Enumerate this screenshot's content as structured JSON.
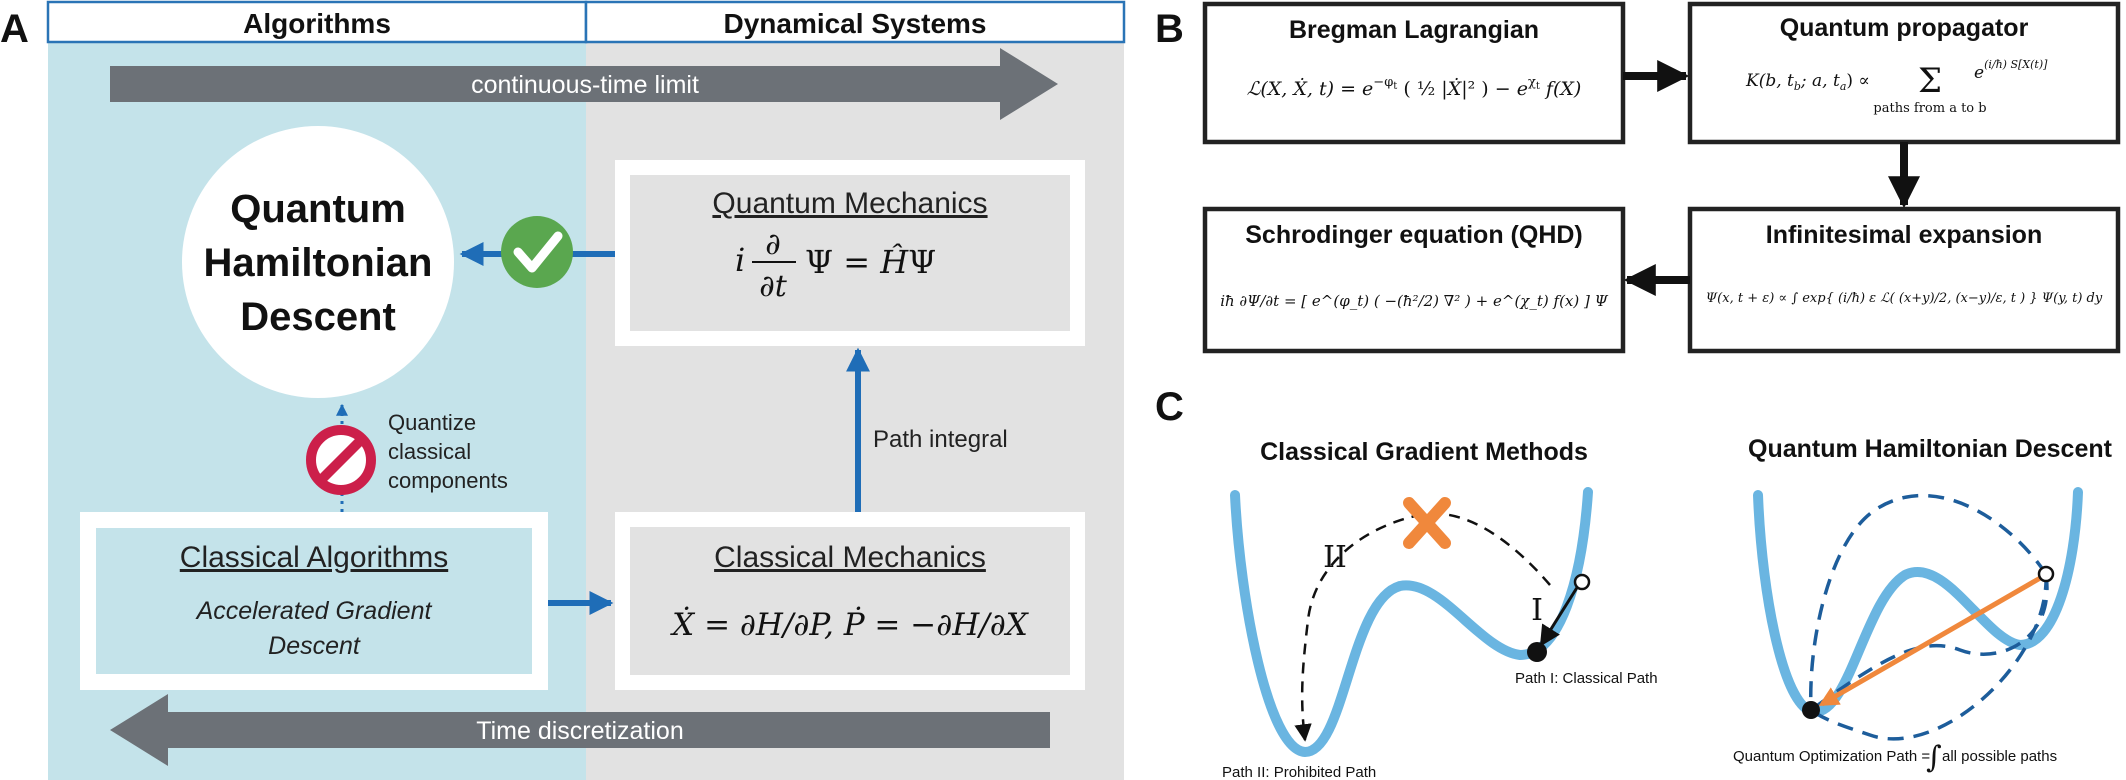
{
  "panel_labels": {
    "a": "A",
    "b": "B",
    "c": "C"
  },
  "colors": {
    "algorithms_bg": "#c4e3ea",
    "dynamics_bg": "#e2e2e2",
    "header_border": "#2a74b6",
    "arrow_gray": "#6c7177",
    "blue_arrow": "#1f6db7",
    "check_green": "#5aa74f",
    "prohibit_red": "#cc1f4a",
    "curve_blue": "#6ab5e1",
    "cross_orange": "#f0883c",
    "path_blue": "#1d5d9b"
  },
  "panel_a": {
    "header_left": "Algorithms",
    "header_right": "Dynamical Systems",
    "arrow_top": "continuous-time limit",
    "arrow_bottom": "Time discretization",
    "qhd_lines": [
      "Quantum",
      "Hamiltonian",
      "Descent"
    ],
    "quantum_mechanics_title": "Quantum Mechanics",
    "schrodinger_eq": "i ∂Ψ/∂t = ĤΨ",
    "path_integral": "Path integral",
    "quantize_lines": [
      "Quantize",
      "classical",
      "components"
    ],
    "classical_algorithms_title": "Classical Algorithms",
    "classical_algorithms_sub": [
      "Accelerated Gradient",
      "Descent"
    ],
    "classical_mechanics_title": "Classical Mechanics",
    "hamilton_eq": "Ẋ = ∂H/∂P, Ṗ = −∂H/∂X"
  },
  "panel_b": {
    "boxes": [
      {
        "title": "Bregman Lagrangian",
        "equation": "ℒ(X, Ẋ, t) = e^(−φ_t) ( ½ |Ẋ|² ) − e^(χ_t) f(X)"
      },
      {
        "title": "Quantum propagator",
        "equation": "K(b, t_b; a, t_a) ∝ Σ e^((i/ħ) S[X(t)])",
        "sum_subscript": "paths from a to b"
      },
      {
        "title": "Infinitesimal expansion",
        "equation": "Ψ(x, t + ε) ∝ ∫ exp{ (i/ħ) ε ℒ( (x+y)/2, (x−y)/ε, t ) } Ψ(y, t) dy"
      },
      {
        "title": "Schrodinger equation (QHD)",
        "equation": "iħ ∂Ψ/∂t = [ e^(φ_t) ( −(ħ²/2) ∇² ) + e^(χ_t) f(x) ] Ψ"
      }
    ]
  },
  "panel_c": {
    "left_title": "Classical Gradient Methods",
    "right_title": "Quantum Hamiltonian Descent",
    "label_I": "I",
    "label_II": "II",
    "path_I": "Path I: Classical Path",
    "path_II": "Path II: Prohibited Path",
    "qopt_prefix": "Quantum Optimization Path =",
    "qopt_suffix": "all possible paths"
  }
}
